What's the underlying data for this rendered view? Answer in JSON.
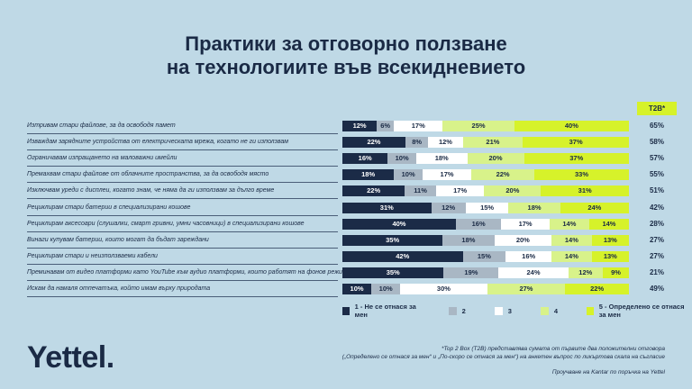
{
  "title_line1": "Практики за отговорно ползване",
  "title_line2": "на технологиите във всекидневието",
  "t2b_header": "T2B*",
  "colors": {
    "c1": "#1b2b47",
    "c2": "#a9b7c4",
    "c3": "#ffffff",
    "c4": "#d8f28a",
    "c5": "#d6f22a"
  },
  "chart_data": {
    "type": "bar",
    "stacked": true,
    "orientation": "horizontal",
    "title": "Практики за отговорно ползване на технологиите във всекидневието",
    "categories": [
      "Изтривам стари файлове, за да освободя памет",
      "Изваждам зарядните устройства от електрическата мрежа, когато не ги използвам",
      "Ограничавам изпращането на маловажни имейли",
      "Премахвам стари файлове от облачните пространства, за да освободя място",
      "Изключвам уреди с дисплеи, когато знам, че няма да ги използвам за дълго време",
      "Рециклирам стари батерии в специализирани кошове",
      "Рециклирам аксесоари (слушалки, смарт гривни, умни часовници) в специализирани кошове",
      "Винаги купувам батерии, които могат да бъдат зареждани",
      "Рециклирам стари и неизползваеми кабели",
      "Преминавам от видео платформи като YouTube към аудио платформи, които работят на фонов режим",
      "Искам да намаля отпечатъка, който имам върху природата"
    ],
    "series": [
      {
        "name": "1 - Не се отнася за мен",
        "values": [
          12,
          22,
          16,
          18,
          22,
          31,
          40,
          35,
          42,
          35,
          10
        ]
      },
      {
        "name": "2",
        "values": [
          6,
          8,
          10,
          10,
          11,
          12,
          16,
          18,
          15,
          19,
          10
        ]
      },
      {
        "name": "3",
        "values": [
          17,
          12,
          18,
          17,
          17,
          15,
          17,
          20,
          16,
          24,
          30
        ]
      },
      {
        "name": "4",
        "values": [
          25,
          21,
          20,
          22,
          20,
          18,
          14,
          14,
          14,
          12,
          27
        ]
      },
      {
        "name": "5 - Определено се отнася за мен",
        "values": [
          40,
          37,
          37,
          33,
          31,
          24,
          14,
          13,
          13,
          9,
          22
        ]
      }
    ],
    "t2b": [
      "65%",
      "58%",
      "57%",
      "55%",
      "51%",
      "42%",
      "28%",
      "27%",
      "27%",
      "21%",
      "49%"
    ],
    "xlim": [
      0,
      100
    ]
  },
  "legend": [
    {
      "label": "1 - Не се отнася за мен"
    },
    {
      "label": "2"
    },
    {
      "label": "3"
    },
    {
      "label": "4"
    },
    {
      "label": "5 - Определено се отнася за мен"
    }
  ],
  "logo": "Yettel.",
  "footnote_line1": "*Top 2 Box (T2B) представлява сумата от първите два положителни отговора",
  "footnote_line2": "(„Определено се отнася за мен“ и „По-скоро се отнася за мен“) на анкетен въпрос по ликъртова скала на съгласие",
  "source": "Проучване на Kantar по поръчка на Yettel"
}
